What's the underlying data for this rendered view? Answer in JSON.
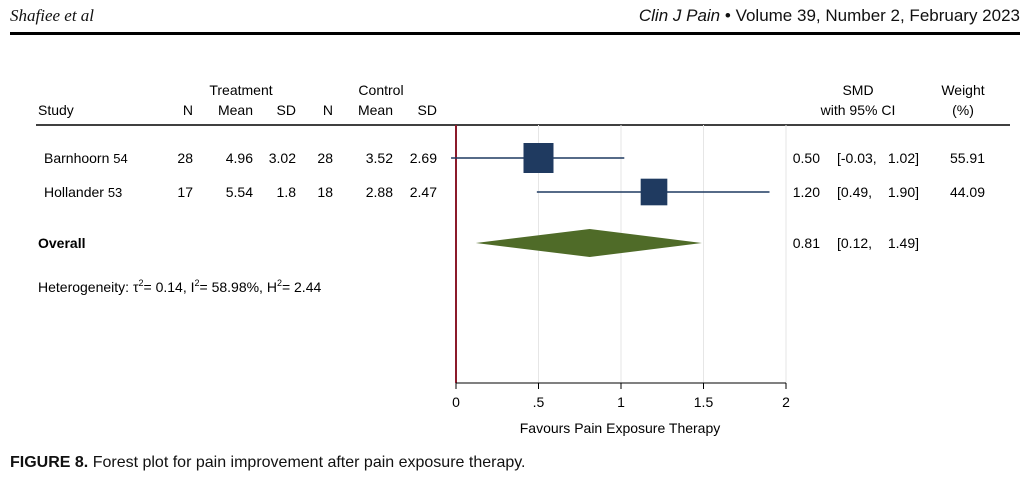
{
  "header": {
    "authors": "Shafiee et al",
    "journal": "Clin J Pain",
    "bullet": "•",
    "issue": "Volume 39, Number 2, February 2023"
  },
  "caption": {
    "label": "FIGURE 8.",
    "text": "Forest plot for pain improvement after pain exposure therapy."
  },
  "chart_data": {
    "type": "forest",
    "columns": {
      "treatment_group": "Treatment",
      "control_group": "Control",
      "study": "Study",
      "n": "N",
      "mean": "Mean",
      "sd": "SD",
      "smd": "SMD",
      "smd_sub": "with 95% CI",
      "weight": "Weight",
      "weight_sub": "(%)"
    },
    "studies": [
      {
        "name": "Barnhoorn",
        "ref": "54",
        "t_n": "28",
        "t_mean": "4.96",
        "t_sd": "3.02",
        "c_n": "28",
        "c_mean": "3.52",
        "c_sd": "2.69",
        "smd": 0.5,
        "lo": -0.03,
        "hi": 1.02,
        "smd_text": "0.50",
        "ci_lo_text": "[-0.03,",
        "ci_hi_text": "1.02]",
        "weight": 55.91,
        "weight_text": "55.91"
      },
      {
        "name": "Hollander",
        "ref": "53",
        "t_n": "17",
        "t_mean": "5.54",
        "t_sd": "1.8",
        "c_n": "18",
        "c_mean": "2.88",
        "c_sd": "2.47",
        "smd": 1.2,
        "lo": 0.49,
        "hi": 1.9,
        "smd_text": "1.20",
        "ci_lo_text": "[0.49,",
        "ci_hi_text": "1.90]",
        "weight": 44.09,
        "weight_text": "44.09"
      }
    ],
    "overall": {
      "label": "Overall",
      "smd": 0.81,
      "lo": 0.12,
      "hi": 1.49,
      "smd_text": "0.81",
      "ci_lo_text": "[0.12,",
      "ci_hi_text": "1.49]"
    },
    "heterogeneity": {
      "prefix": "Heterogeneity: τ",
      "tau2": "= 0.14, I",
      "i2": "= 58.98%, H",
      "h2": "= 2.44",
      "sup": "2"
    },
    "xaxis": {
      "ticks": [
        0,
        0.5,
        1,
        1.5,
        2
      ],
      "tick_labels": [
        "0",
        ".5",
        "1",
        "1.5",
        "2"
      ],
      "range": [
        0,
        2
      ],
      "label": "Favours Pain Exposure Therapy"
    },
    "colors": {
      "box": "#1f3a60",
      "line": "#1f3a60",
      "diamond": "#4f6b28",
      "null_line": "#8b1a2b",
      "grid": "#e6e6e6"
    }
  }
}
